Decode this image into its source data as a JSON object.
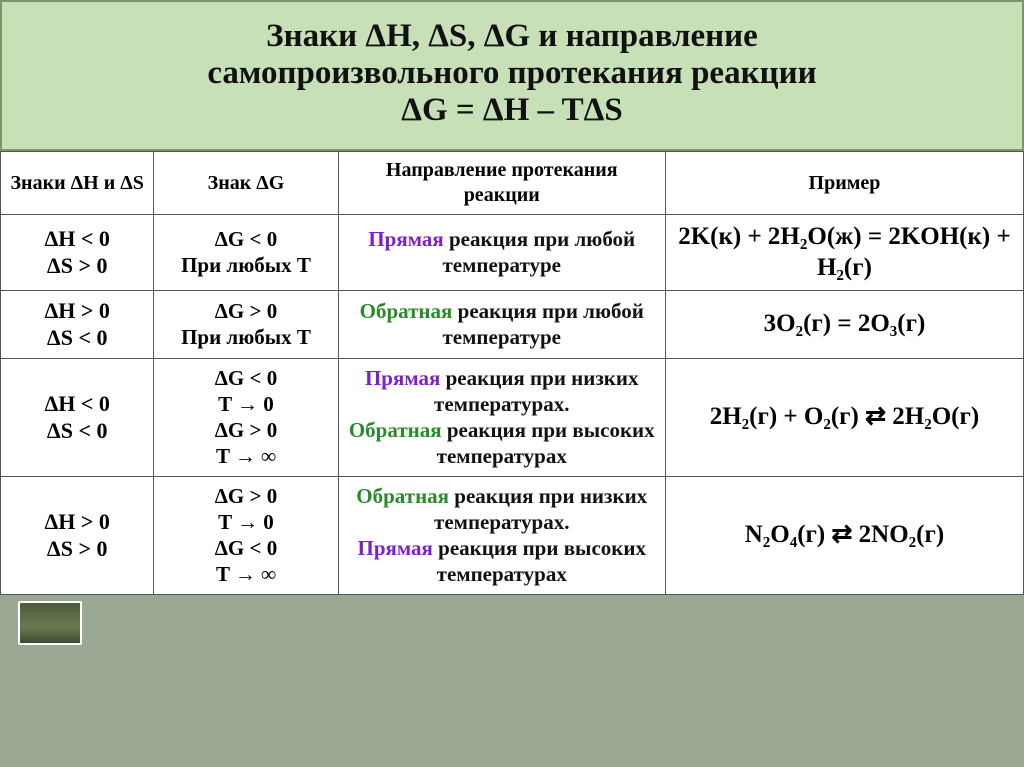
{
  "header": {
    "line1": "Знаки ΔH, ΔS, ΔG и направление",
    "line2": "самопроизвольного протекания реакции",
    "line3": "ΔG = ΔH – TΔS"
  },
  "colors": {
    "header_bg": "#c7e0b8",
    "header_border": "#7a9668",
    "page_bg": "#9aa894",
    "table_bg": "#ffffff",
    "border": "#555555",
    "forward": "#7f1fc9",
    "reverse": "#2a8a2a",
    "text": "#111111"
  },
  "columns": {
    "c1": "Знаки ΔH и ΔS",
    "c2": "Знак ΔG",
    "c3": "Направление протекания реакции",
    "c4": "Пример"
  },
  "rows": [
    {
      "hs": {
        "h": "ΔH < 0",
        "s": "ΔS > 0"
      },
      "g": {
        "l1": "ΔG < 0",
        "l2": "При любых T"
      },
      "dir": [
        {
          "kind": "fwd",
          "text": "Прямая"
        },
        {
          "kind": "plain",
          "text": " реакция при любой температуре"
        }
      ],
      "ex": "2K(к) + 2H₂O(ж) = 2KOH(к) + H₂(г)"
    },
    {
      "hs": {
        "h": "ΔH > 0",
        "s": "ΔS < 0"
      },
      "g": {
        "l1": "ΔG > 0",
        "l2": "При любых T"
      },
      "dir": [
        {
          "kind": "rev",
          "text": "Обратная"
        },
        {
          "kind": "plain",
          "text": " реакция при любой температуре"
        }
      ],
      "ex": "3O₂(г)  = 2O₃(г)"
    },
    {
      "hs": {
        "h": "ΔH < 0",
        "s": "ΔS < 0"
      },
      "g": {
        "l1": "ΔG < 0",
        "l2": "T → 0",
        "l3": "ΔG > 0",
        "l4": "T → ∞"
      },
      "dir": [
        {
          "kind": "fwd",
          "text": "Прямая"
        },
        {
          "kind": "plain",
          "text": " реакция при низких температурах."
        },
        {
          "kind": "br"
        },
        {
          "kind": "rev",
          "text": "Обратная"
        },
        {
          "kind": "plain",
          "text": " реакция при высоких температурах"
        }
      ],
      "ex": "2H₂(г) + O₂(г) ⇄ 2H₂O(г)"
    },
    {
      "hs": {
        "h": "ΔH > 0",
        "s": "ΔS > 0"
      },
      "g": {
        "l1": "ΔG > 0",
        "l2": "T → 0",
        "l3": "ΔG < 0",
        "l4": "T → ∞"
      },
      "dir": [
        {
          "kind": "rev",
          "text": "Обратная"
        },
        {
          "kind": "plain",
          "text": " реакция при низких температурах."
        },
        {
          "kind": "br"
        },
        {
          "kind": "fwd",
          "text": "Прямая"
        },
        {
          "kind": "plain",
          "text": " реакция при высоких температурах"
        }
      ],
      "ex": "N₂O₄(г) ⇄ 2NO₂(г)"
    }
  ]
}
